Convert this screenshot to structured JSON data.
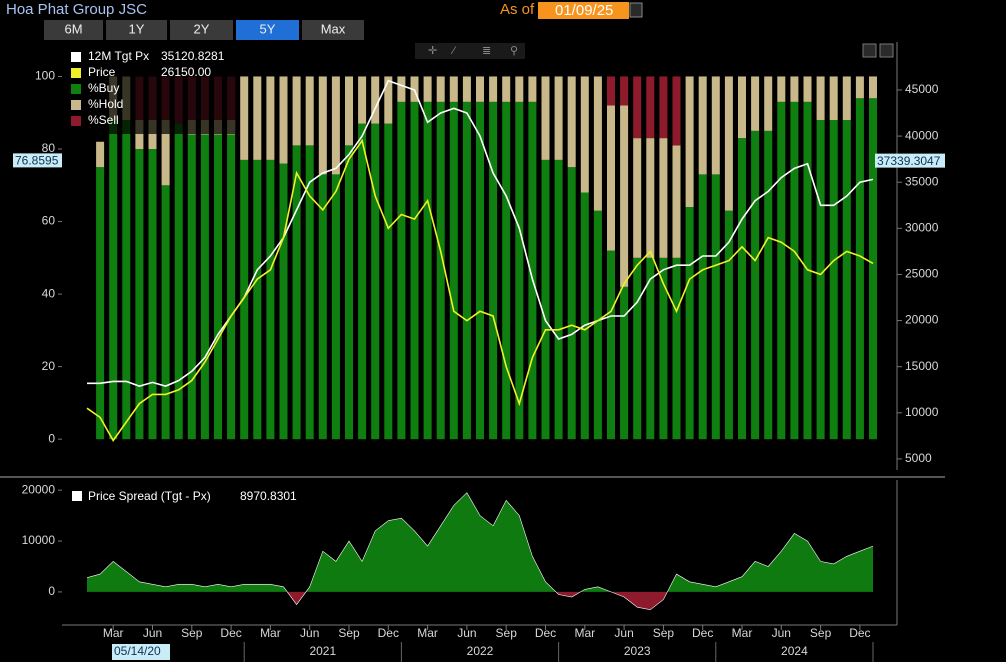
{
  "header": {
    "title": "Hoa Phat Group JSC",
    "as_of": "As of",
    "date": "01/09/25"
  },
  "buttons": [
    "6M",
    "1Y",
    "2Y",
    "5Y",
    "Max"
  ],
  "active_button": 3,
  "x_axis": {
    "months": [
      "Mar",
      "Jun",
      "Sep",
      "Dec",
      "Mar",
      "Jun",
      "Sep",
      "Dec",
      "Mar",
      "Jun",
      "Sep",
      "Dec",
      "Mar",
      "Jun",
      "Sep",
      "Dec",
      "Mar",
      "Jun",
      "Sep",
      "Dec"
    ],
    "years": [
      "2021",
      "2022",
      "2023",
      "2024"
    ],
    "start_date": "05/14/20"
  },
  "chart_data": [
    {
      "type": "bar",
      "ylim": [
        -8.5,
        109.5
      ],
      "yticks": [
        0,
        20,
        40,
        60,
        80,
        100
      ],
      "y2lim": [
        3800,
        50200
      ],
      "y2ticks": [
        5000,
        10000,
        15000,
        20000,
        25000,
        30000,
        35000,
        40000,
        45000
      ],
      "legend": "top-left",
      "markers": [
        {
          "value": 76.8595,
          "axis": "y"
        },
        {
          "value": 37339.3047,
          "axis": "y2"
        }
      ],
      "series": [
        {
          "name": "12M Tgt Px",
          "color": "#ffffff",
          "axis": "y2",
          "kind": "line",
          "legend_value": "35120.8281",
          "values": [
            13200,
            13200,
            13400,
            13400,
            12900,
            13300,
            12900,
            13500,
            14500,
            16000,
            18500,
            20500,
            22500,
            25500,
            27000,
            29000,
            32000,
            35000,
            36000,
            36500,
            38000,
            40000,
            43000,
            46000,
            45500,
            45000,
            41500,
            42500,
            43000,
            42500,
            40000,
            36000,
            33500,
            30000,
            24500,
            20000,
            18000,
            18500,
            19500,
            20000,
            20500,
            20500,
            22000,
            24500,
            25500,
            26000,
            26000,
            27000,
            27000,
            28500,
            31000,
            33000,
            34000,
            35500,
            36500,
            37000,
            32500,
            32500,
            33500,
            35000,
            35300
          ]
        },
        {
          "name": "Price",
          "color": "#f0f02a",
          "axis": "y2",
          "kind": "line",
          "legend_value": "26150.00",
          "values": [
            10500,
            9500,
            7000,
            9000,
            11000,
            12000,
            12000,
            12500,
            13500,
            15500,
            18000,
            20500,
            22500,
            24500,
            25500,
            29000,
            36000,
            33500,
            32000,
            34000,
            37500,
            39500,
            33500,
            30000,
            31500,
            31000,
            33000,
            27500,
            21000,
            20000,
            21000,
            20500,
            15000,
            11000,
            16000,
            19000,
            19000,
            19500,
            19000,
            20000,
            21000,
            24000,
            26000,
            27500,
            24000,
            21000,
            24500,
            25500,
            26000,
            26500,
            28000,
            26500,
            29000,
            28500,
            27500,
            25500,
            25000,
            26500,
            27500,
            27000,
            26200
          ]
        },
        {
          "name": "%Buy",
          "color": "#0f800f",
          "kind": "bar",
          "values": [
            75,
            88,
            88,
            80,
            80,
            70,
            87,
            84,
            84,
            84,
            84,
            77,
            77,
            77,
            76,
            81,
            81,
            73,
            73,
            81,
            87,
            87,
            87,
            93,
            93,
            93,
            93,
            93,
            93,
            93,
            93,
            93,
            93,
            93,
            77,
            77,
            75,
            68,
            63,
            52,
            42,
            50,
            50,
            50,
            50,
            64,
            73,
            73,
            63,
            83,
            85,
            85,
            93,
            93,
            93,
            88,
            88,
            88,
            94,
            94
          ]
        },
        {
          "name": "%Hold",
          "color": "#c9b98a",
          "kind": "bar",
          "values": [
            7,
            12,
            12,
            8,
            8,
            18,
            0,
            4,
            4,
            4,
            4,
            23,
            23,
            23,
            24,
            19,
            19,
            27,
            27,
            19,
            13,
            13,
            13,
            7,
            7,
            7,
            7,
            7,
            7,
            7,
            7,
            7,
            7,
            7,
            23,
            23,
            25,
            32,
            37,
            40,
            50,
            33,
            33,
            33,
            31,
            36,
            27,
            27,
            37,
            17,
            15,
            15,
            7,
            7,
            7,
            12,
            12,
            12,
            6,
            6
          ]
        },
        {
          "name": "%Sell",
          "color": "#8e1b2c",
          "kind": "bar",
          "values": [
            0,
            0,
            0,
            12,
            12,
            12,
            13,
            12,
            12,
            12,
            12,
            0,
            0,
            0,
            0,
            0,
            0,
            0,
            0,
            0,
            0,
            0,
            0,
            0,
            0,
            0,
            0,
            0,
            0,
            0,
            0,
            0,
            0,
            0,
            0,
            0,
            0,
            0,
            0,
            8,
            8,
            17,
            17,
            17,
            19,
            0,
            0,
            0,
            0,
            0,
            0,
            0,
            0,
            0,
            0,
            0,
            0,
            0,
            0,
            0
          ]
        }
      ]
    },
    {
      "type": "area",
      "ylim": [
        -6500,
        22000
      ],
      "yticks": [
        0,
        10000,
        20000
      ],
      "legend": "top-left",
      "series": [
        {
          "name": "Price Spread (Tgt - Px)",
          "legend_value": 8970.8301,
          "color": "#0f7a0f",
          "negative_color": "#8e1b2c",
          "values": [
            2800,
            3500,
            6000,
            4000,
            2000,
            1500,
            1000,
            1500,
            1500,
            1000,
            1500,
            1000,
            1500,
            1500,
            1500,
            1000,
            -2500,
            1000,
            8000,
            6000,
            10000,
            6000,
            12000,
            14000,
            14500,
            12000,
            9000,
            13000,
            17000,
            19500,
            15000,
            13000,
            18000,
            15000,
            7000,
            2000,
            -500,
            -1000,
            500,
            1000,
            0,
            -1000,
            -3000,
            -3500,
            -1500,
            3500,
            2000,
            1500,
            1000,
            2000,
            3000,
            6000,
            5000,
            8000,
            11500,
            10000,
            6000,
            5500,
            7000,
            8000,
            9000
          ]
        }
      ]
    }
  ]
}
